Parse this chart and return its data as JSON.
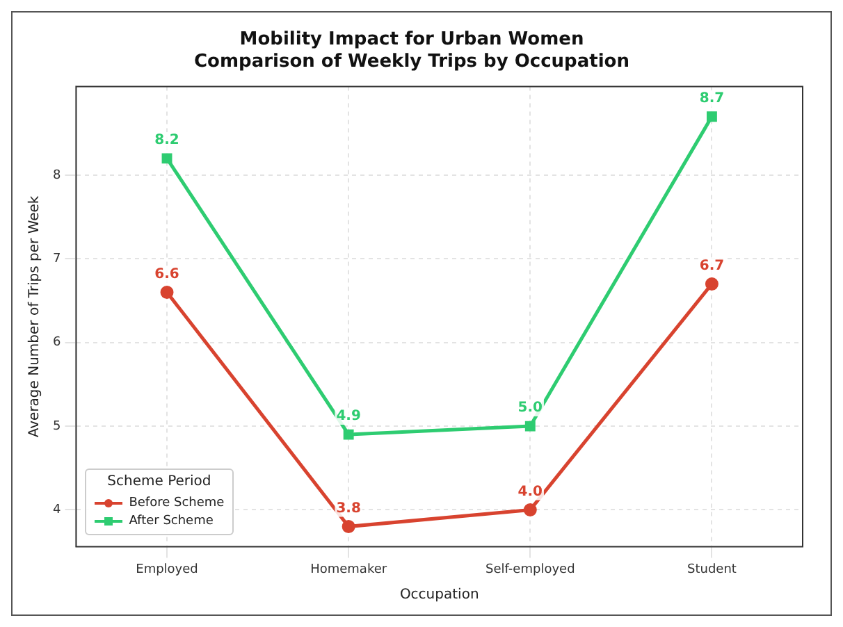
{
  "chart_data": {
    "type": "line",
    "title": "Mobility Impact for Urban Women",
    "subtitle": "Comparison of Weekly Trips by Occupation",
    "xlabel": "Occupation",
    "ylabel": "Average Number of Trips per Week",
    "legend_title": "Scheme Period",
    "categories": [
      "Employed",
      "Homemaker",
      "Self-employed",
      "Student"
    ],
    "series": [
      {
        "name": "Before Scheme",
        "color": "#d8432f",
        "marker": "circle",
        "values": [
          6.6,
          3.8,
          4.0,
          6.7
        ],
        "value_labels": [
          "6.6",
          "3.8",
          "4.0",
          "6.7"
        ]
      },
      {
        "name": "After Scheme",
        "color": "#2ecc71",
        "marker": "square",
        "values": [
          8.2,
          4.9,
          5.0,
          8.7
        ],
        "value_labels": [
          "8.2",
          "4.9",
          "5.0",
          "8.7"
        ]
      }
    ],
    "ylim": [
      3.56,
      9.06
    ],
    "yticks": [
      4,
      5,
      6,
      7,
      8
    ],
    "grid": true,
    "legend": "bottom left",
    "line_style": "solid"
  }
}
